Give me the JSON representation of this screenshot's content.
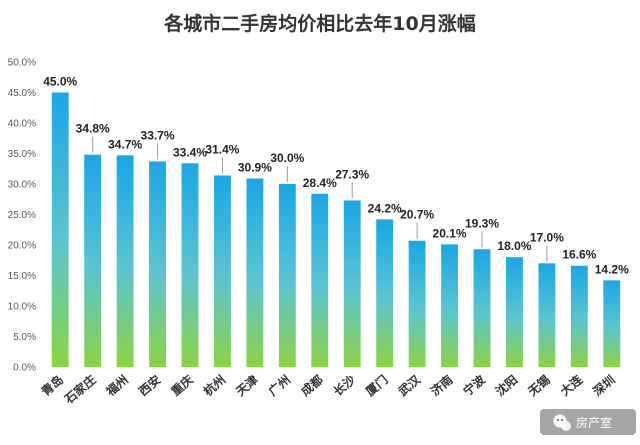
{
  "chart_data": {
    "type": "bar",
    "title": "各城市二手房均价相比去年10月涨幅",
    "xlabel": "",
    "ylabel": "",
    "categories": [
      "青岛",
      "石家庄",
      "福州",
      "西安",
      "重庆",
      "杭州",
      "天津",
      "广州",
      "成都",
      "长沙",
      "厦门",
      "武汉",
      "济南",
      "宁波",
      "沈阳",
      "无锡",
      "大连",
      "深圳"
    ],
    "values": [
      45.0,
      34.8,
      34.7,
      33.7,
      33.4,
      31.4,
      30.9,
      30.0,
      28.4,
      27.3,
      24.2,
      20.7,
      20.1,
      19.3,
      18.0,
      17.0,
      16.6,
      14.2
    ],
    "value_labels": [
      "45.0%",
      "34.8%",
      "34.7%",
      "33.7%",
      "33.4%",
      "31.4%",
      "30.9%",
      "30.0%",
      "28.4%",
      "27.3%",
      "24.2%",
      "20.7%",
      "20.1%",
      "19.3%",
      "18.0%",
      "17.0%",
      "16.6%",
      "14.2%"
    ],
    "ylim": [
      0,
      50
    ],
    "yticks": [
      0,
      5,
      10,
      15,
      20,
      25,
      30,
      35,
      40,
      45,
      50
    ],
    "ytick_labels": [
      "0.0%",
      "5.0%",
      "10.0%",
      "15.0%",
      "20.0%",
      "25.0%",
      "30.0%",
      "35.0%",
      "40.0%",
      "45.0%",
      "50.0%"
    ],
    "grid": false,
    "colors": {
      "bar_top": "#1aa7e6",
      "bar_bottom": "#8bd53f",
      "leader": "#9a9a9a"
    }
  },
  "watermark": {
    "text": "房产室",
    "icon": "wechat-icon"
  }
}
